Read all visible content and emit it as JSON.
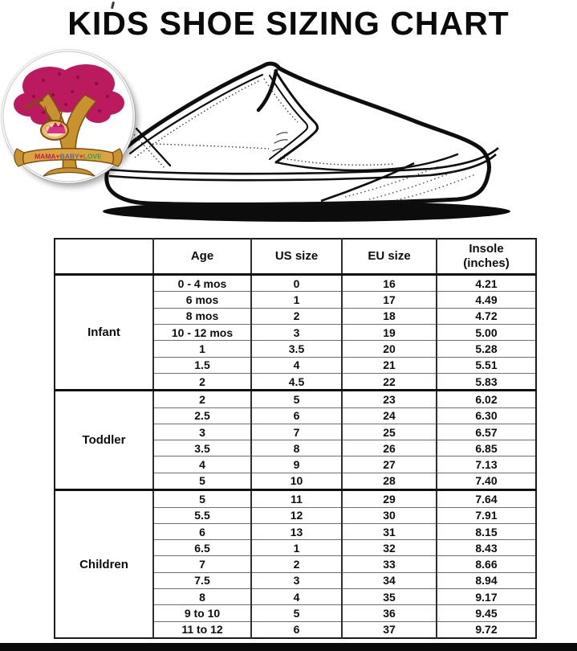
{
  "page": {
    "title": "KIDS SHOE SIZING CHART"
  },
  "logo": {
    "banner_segments": [
      {
        "text": "MAMA",
        "color": "#c2185b"
      },
      {
        "text": "♥",
        "color": "#e53935"
      },
      {
        "text": "BABY",
        "color": "#5b5ea6"
      },
      {
        "text": "♥",
        "color": "#e53935"
      },
      {
        "text": "LOVE",
        "color": "#3a9b4f"
      }
    ],
    "colors": {
      "foliage": "#bb1b5e",
      "foliage_dark": "#8c1045",
      "trunk": "#c8922f",
      "trunk_outline": "#7c4e14",
      "banner": "#dca43e"
    }
  },
  "shoe": {
    "label": "black and white slip-on sneaker line drawing"
  },
  "table": {
    "headers": {
      "group": "",
      "age": "Age",
      "us": "US size",
      "eu": "EU size",
      "insole": "Insole\n(inches)"
    },
    "groups": [
      {
        "label": "Infant",
        "rows": [
          [
            "0 - 4 mos",
            "0",
            "16",
            "4.21"
          ],
          [
            "6 mos",
            "1",
            "17",
            "4.49"
          ],
          [
            "8 mos",
            "2",
            "18",
            "4.72"
          ],
          [
            "10 - 12 mos",
            "3",
            "19",
            "5.00"
          ],
          [
            "1",
            "3.5",
            "20",
            "5.28"
          ],
          [
            "1.5",
            "4",
            "21",
            "5.51"
          ],
          [
            "2",
            "4.5",
            "22",
            "5.83"
          ]
        ]
      },
      {
        "label": "Toddler",
        "rows": [
          [
            "2",
            "5",
            "23",
            "6.02"
          ],
          [
            "2.5",
            "6",
            "24",
            "6.30"
          ],
          [
            "3",
            "7",
            "25",
            "6.57"
          ],
          [
            "3.5",
            "8",
            "26",
            "6.85"
          ],
          [
            "4",
            "9",
            "27",
            "7.13"
          ],
          [
            "5",
            "10",
            "28",
            "7.40"
          ]
        ]
      },
      {
        "label": "Children",
        "rows": [
          [
            "5",
            "11",
            "29",
            "7.64"
          ],
          [
            "5.5",
            "12",
            "30",
            "7.91"
          ],
          [
            "6",
            "13",
            "31",
            "8.15"
          ],
          [
            "6.5",
            "1",
            "32",
            "8.43"
          ],
          [
            "7",
            "2",
            "33",
            "8.66"
          ],
          [
            "7.5",
            "3",
            "34",
            "8.94"
          ],
          [
            "8",
            "4",
            "35",
            "9.17"
          ],
          [
            "9 to 10",
            "5",
            "36",
            "9.45"
          ],
          [
            "11 to 12",
            "6",
            "37",
            "9.72"
          ]
        ]
      }
    ]
  },
  "chart_data": {
    "type": "table",
    "title": "KIDS SHOE SIZING CHART",
    "columns": [
      "Group",
      "Age",
      "US size",
      "EU size",
      "Insole (inches)"
    ],
    "rows": [
      [
        "Infant",
        "0 - 4 mos",
        "0",
        "16",
        "4.21"
      ],
      [
        "Infant",
        "6 mos",
        "1",
        "17",
        "4.49"
      ],
      [
        "Infant",
        "8 mos",
        "2",
        "18",
        "4.72"
      ],
      [
        "Infant",
        "10 - 12 mos",
        "3",
        "19",
        "5.00"
      ],
      [
        "Infant",
        "1",
        "3.5",
        "20",
        "5.28"
      ],
      [
        "Infant",
        "1.5",
        "4",
        "21",
        "5.51"
      ],
      [
        "Infant",
        "2",
        "4.5",
        "22",
        "5.83"
      ],
      [
        "Toddler",
        "2",
        "5",
        "23",
        "6.02"
      ],
      [
        "Toddler",
        "2.5",
        "6",
        "24",
        "6.30"
      ],
      [
        "Toddler",
        "3",
        "7",
        "25",
        "6.57"
      ],
      [
        "Toddler",
        "3.5",
        "8",
        "26",
        "6.85"
      ],
      [
        "Toddler",
        "4",
        "9",
        "27",
        "7.13"
      ],
      [
        "Toddler",
        "5",
        "10",
        "28",
        "7.40"
      ],
      [
        "Children",
        "5",
        "11",
        "29",
        "7.64"
      ],
      [
        "Children",
        "5.5",
        "12",
        "30",
        "7.91"
      ],
      [
        "Children",
        "6",
        "13",
        "31",
        "8.15"
      ],
      [
        "Children",
        "6.5",
        "1",
        "32",
        "8.43"
      ],
      [
        "Children",
        "7",
        "2",
        "33",
        "8.66"
      ],
      [
        "Children",
        "7.5",
        "3",
        "34",
        "8.94"
      ],
      [
        "Children",
        "8",
        "4",
        "35",
        "9.17"
      ],
      [
        "Children",
        "9 to 10",
        "5",
        "36",
        "9.45"
      ],
      [
        "Children",
        "11 to 12",
        "6",
        "37",
        "9.72"
      ]
    ]
  }
}
